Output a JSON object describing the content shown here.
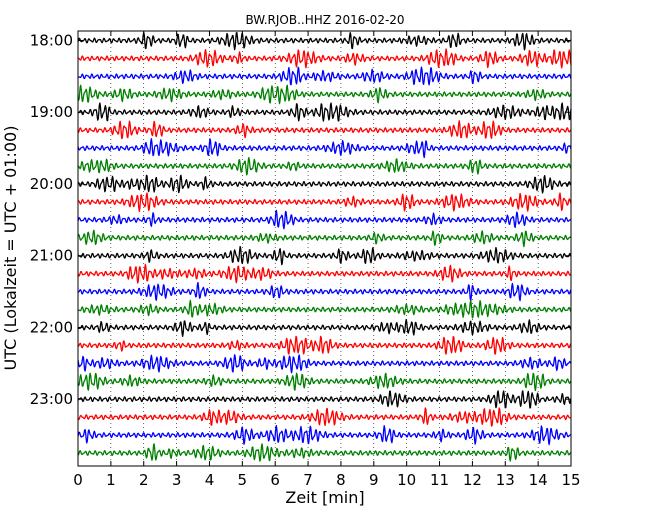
{
  "chart_data": {
    "type": "line",
    "title": "BW.RJOB..HHZ 2016-02-20",
    "xlabel": "Zeit  [min]",
    "ylabel": "UTC (Lokalzeit = UTC + 01:00)",
    "xlim": [
      0,
      15
    ],
    "x_ticks": [
      "0",
      "1",
      "2",
      "3",
      "4",
      "5",
      "6",
      "7",
      "8",
      "9",
      "10",
      "11",
      "12",
      "13",
      "14",
      "15"
    ],
    "y_tick_labels": [
      "18:00",
      "19:00",
      "20:00",
      "21:00",
      "22:00",
      "23:00"
    ],
    "traces_per_hour": 4,
    "trace_count": 24,
    "trace_colors": [
      "#000000",
      "#ff0000",
      "#0000ff",
      "#008000"
    ],
    "grid": "vertical dotted lines at each minute",
    "legend": "none"
  }
}
